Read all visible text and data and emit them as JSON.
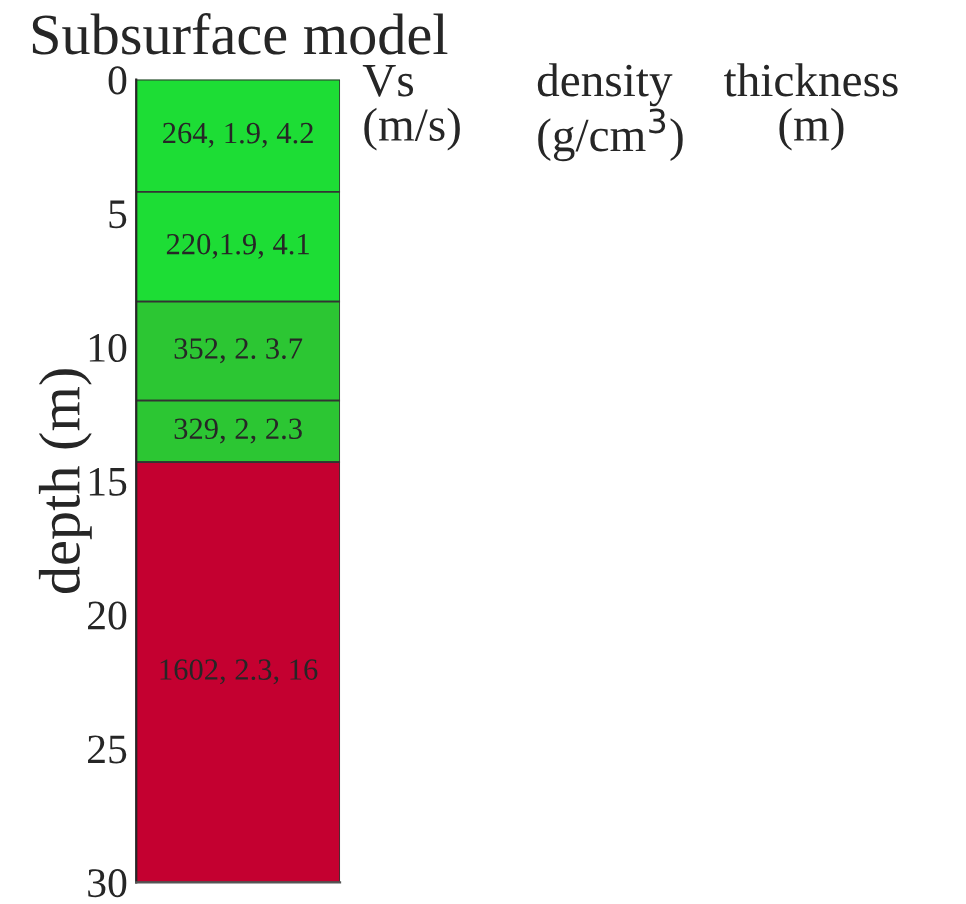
{
  "chart_data": {
    "type": "bar",
    "stacked": true,
    "title": "Subsurface model",
    "ylabel": "depth (m)",
    "categories": [
      null
    ],
    "series": [
      {
        "color": "#1ddd35",
        "values": [
          4.2
        ],
        "value_labels": [
          "264, 1.9, 4.2"
        ]
      },
      {
        "color": "#1ddd35",
        "values": [
          4.1
        ],
        "value_labels": [
          "220,1.9, 4.1"
        ]
      },
      {
        "color": "#2cc633",
        "values": [
          3.7
        ],
        "value_labels": [
          "352, 2. 3.7"
        ]
      },
      {
        "color": "#2cc633",
        "values": [
          2.3
        ],
        "value_labels": [
          "329, 2, 2.3"
        ]
      },
      {
        "color": "#c40030",
        "values": [
          15.7
        ],
        "value_labels": [
          "1602, 2.3, 16"
        ]
      }
    ],
    "ylim": [
      30,
      0
    ],
    "yticks": [
      0,
      5,
      10,
      15,
      20,
      25,
      30
    ],
    "annotations": [
      "Vs\n(m/s)",
      "density\n(g/cm$^{3}$)",
      "thickness\n(m)"
    ],
    "grid": false,
    "legend": false
  }
}
